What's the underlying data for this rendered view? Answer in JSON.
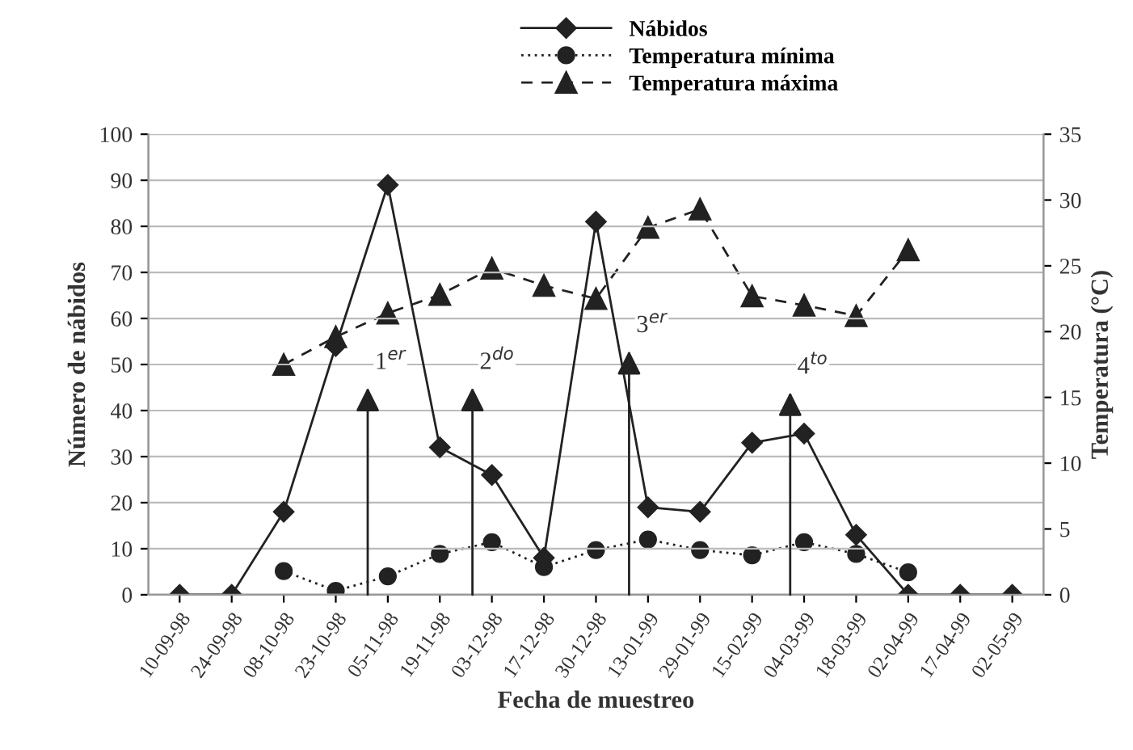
{
  "chart_data": {
    "type": "line",
    "xlabel": "Fecha de muestreo",
    "ylabel": "Número de nábidos",
    "y2label": "Temperatura (°C)",
    "categories": [
      "10-09-98",
      "24-09-98",
      "08-10-98",
      "23-10-98",
      "05-11-98",
      "19-11-98",
      "03-12-98",
      "17-12-98",
      "30-12-98",
      "13-01-99",
      "29-01-99",
      "15-02-99",
      "04-03-99",
      "18-03-99",
      "02-04-99",
      "17-04-99",
      "02-05-99"
    ],
    "series": [
      {
        "name": "Nábidos",
        "color": "#222222",
        "marker": "diamond",
        "line_style": "solid",
        "values": [
          0,
          0,
          18,
          54,
          89,
          32,
          26,
          8,
          81,
          19,
          18,
          33,
          35,
          13,
          0,
          0,
          0
        ]
      },
      {
        "name": "Temperatura mínima",
        "color": "#222222",
        "marker": "circle",
        "line_style": "dotted",
        "axis": "y2",
        "values": [
          null,
          null,
          1.8,
          0.3,
          1.4,
          3.1,
          4.0,
          2.1,
          3.4,
          4.2,
          3.4,
          3.0,
          4.0,
          3.1,
          1.7,
          null,
          null
        ]
      },
      {
        "name": "Temperatura máxima",
        "color": "#222222",
        "marker": "triangle",
        "line_style": "dashed",
        "axis": "y2",
        "values": [
          null,
          null,
          17.5,
          19.6,
          21.4,
          22.8,
          24.8,
          23.5,
          22.5,
          27.9,
          29.3,
          22.7,
          22.0,
          21.2,
          26.2,
          null,
          null
        ]
      }
    ],
    "ylim": [
      0,
      100
    ],
    "yticks": [
      0,
      10,
      20,
      30,
      40,
      50,
      60,
      70,
      80,
      90,
      100
    ],
    "y2lim": [
      0,
      35
    ],
    "y2ticks": [
      0,
      5,
      10,
      15,
      20,
      25,
      30,
      35
    ],
    "grid": "y",
    "legend": "top",
    "annotations": [
      "1$^{er}$",
      "2$^{do}$",
      "3$^{er}$",
      "4$^{to}$"
    ]
  }
}
